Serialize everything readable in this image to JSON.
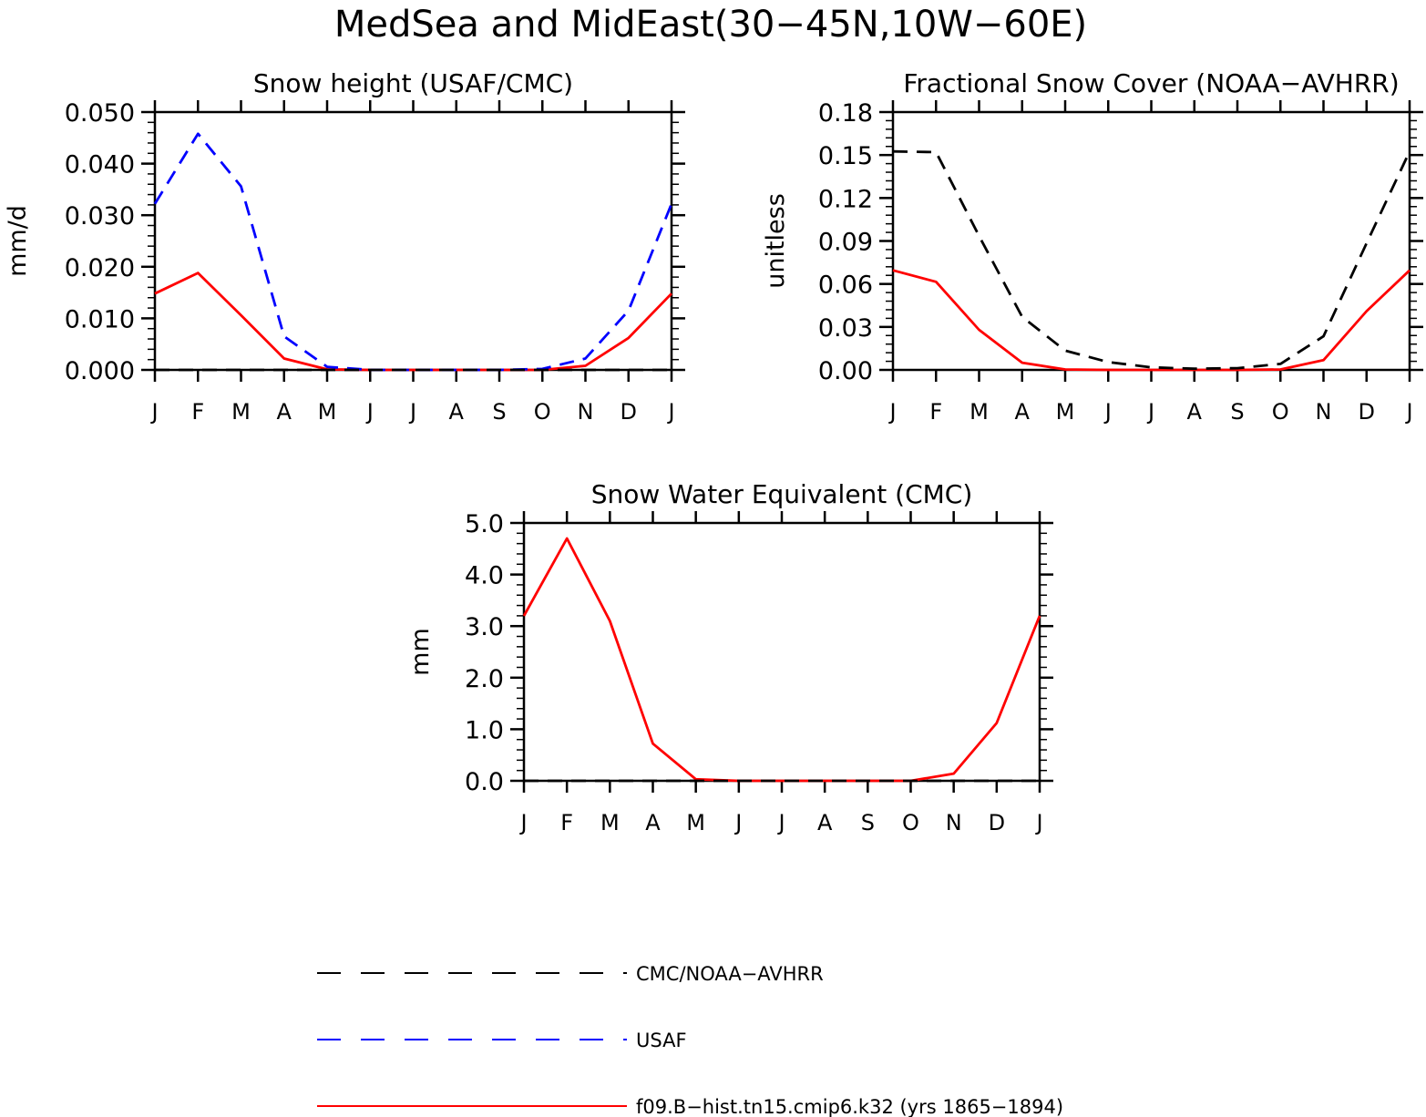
{
  "figure": {
    "title": "MedSea and MidEast(30−45N,10W−60E)"
  },
  "chart_data": [
    {
      "type": "line",
      "title": "Snow height (USAF/CMC)",
      "xlabel": "",
      "ylabel": "mm/d",
      "categories": [
        "J",
        "F",
        "M",
        "A",
        "M",
        "J",
        "J",
        "A",
        "S",
        "O",
        "N",
        "D",
        "J"
      ],
      "ylim": [
        0,
        0.05
      ],
      "yticks": [
        "0.000",
        "0.010",
        "0.020",
        "0.030",
        "0.040",
        "0.050"
      ],
      "ytick_values": [
        0,
        0.01,
        0.02,
        0.03,
        0.04,
        0.05
      ],
      "series": [
        {
          "name": "f09.B−hist.tn15.cmip6.k32 (yrs 1865−1894)",
          "color": "#ff0000",
          "style": "solid",
          "values": [
            0.0148,
            0.0188,
            0.0106,
            0.0022,
            0.0001,
            0,
            0,
            0,
            0,
            0,
            0.0008,
            0.0062,
            0.0148
          ]
        },
        {
          "name": "USAF",
          "color": "#0000ff",
          "style": "dashed",
          "values": [
            0.0322,
            0.0458,
            0.0356,
            0.0065,
            0.0006,
            0,
            0,
            0,
            0,
            0.0002,
            0.0022,
            0.0115,
            0.0322
          ]
        },
        {
          "name": "CMC/NOAA−AVHRR",
          "color": "#000000",
          "style": "dashed",
          "values": [
            0,
            0,
            0,
            0,
            0,
            0,
            0,
            0,
            0,
            0,
            0,
            0,
            0
          ]
        }
      ]
    },
    {
      "type": "line",
      "title": "Fractional Snow Cover (NOAA−AVHRR)",
      "xlabel": "",
      "ylabel": "unitless",
      "categories": [
        "J",
        "F",
        "M",
        "A",
        "M",
        "J",
        "J",
        "A",
        "S",
        "O",
        "N",
        "D",
        "J"
      ],
      "ylim": [
        0,
        0.18
      ],
      "yticks": [
        "0.00",
        "0.03",
        "0.06",
        "0.09",
        "0.12",
        "0.15",
        "0.18"
      ],
      "ytick_values": [
        0,
        0.03,
        0.06,
        0.09,
        0.12,
        0.15,
        0.18
      ],
      "series": [
        {
          "name": "f09.B−hist.tn15.cmip6.k32 (yrs 1865−1894)",
          "color": "#ff0000",
          "style": "solid",
          "values": [
            0.0695,
            0.0615,
            0.028,
            0.005,
            0.0003,
            0,
            0,
            0,
            0,
            0.0003,
            0.0068,
            0.041,
            0.0695
          ]
        },
        {
          "name": "CMC/NOAA−AVHRR",
          "color": "#000000",
          "style": "dashed",
          "values": [
            0.1525,
            0.152,
            0.0935,
            0.037,
            0.0135,
            0.0055,
            0.0018,
            0.0008,
            0.0012,
            0.0042,
            0.0235,
            0.0885,
            0.1525
          ]
        }
      ]
    },
    {
      "type": "line",
      "title": "Snow Water Equivalent (CMC)",
      "xlabel": "",
      "ylabel": "mm",
      "categories": [
        "J",
        "F",
        "M",
        "A",
        "M",
        "J",
        "J",
        "A",
        "S",
        "O",
        "N",
        "D",
        "J"
      ],
      "ylim": [
        0,
        5
      ],
      "yticks": [
        "0.0",
        "1.0",
        "2.0",
        "3.0",
        "4.0",
        "5.0"
      ],
      "ytick_values": [
        0,
        1,
        2,
        3,
        4,
        5
      ],
      "series": [
        {
          "name": "f09.B−hist.tn15.cmip6.k32 (yrs 1865−1894)",
          "color": "#ff0000",
          "style": "solid",
          "values": [
            3.2,
            4.7,
            3.1,
            0.72,
            0.03,
            0,
            0,
            0,
            0,
            0,
            0.14,
            1.12,
            3.2
          ]
        },
        {
          "name": "CMC/NOAA−AVHRR",
          "color": "#000000",
          "style": "dashed",
          "values": [
            0,
            0,
            0,
            0,
            0,
            0,
            0,
            0,
            0,
            0,
            0,
            0,
            0
          ]
        }
      ]
    }
  ],
  "legend": {
    "placement": "bottom",
    "items": [
      {
        "label": "CMC/NOAA−AVHRR",
        "color": "#000000",
        "style": "dashed"
      },
      {
        "label": "USAF",
        "color": "#0000ff",
        "style": "dashed"
      },
      {
        "label": "f09.B−hist.tn15.cmip6.k32 (yrs 1865−1894)",
        "color": "#ff0000",
        "style": "solid"
      }
    ]
  }
}
